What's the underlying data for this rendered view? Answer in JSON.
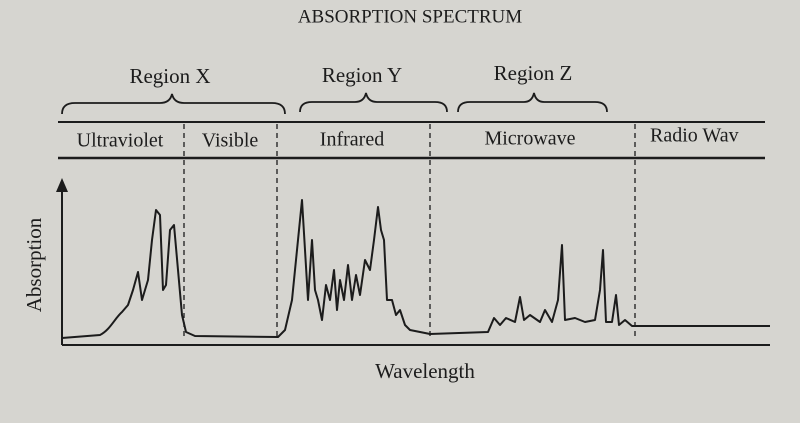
{
  "title": "ABSORPTION SPECTRUM",
  "regions": [
    "Region X",
    "Region Y",
    "Region Z"
  ],
  "bands": [
    "Ultraviolet",
    "Visible",
    "Infrared",
    "Microwave",
    "Radio Wav"
  ],
  "axes": {
    "y_label": "Absorption",
    "x_label": "Wavelength"
  }
}
